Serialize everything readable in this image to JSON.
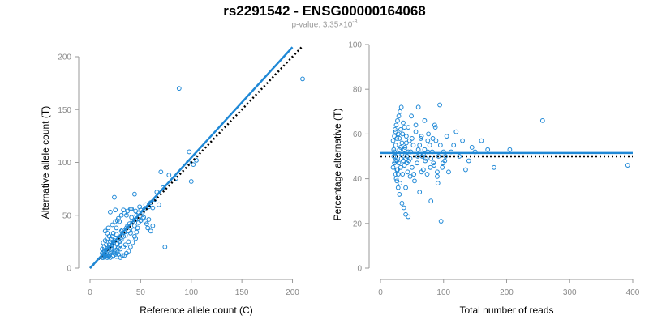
{
  "header": {
    "title": "rs2291542 - ENSG00000164068",
    "pvalue_prefix": "p-value: 3.35",
    "pvalue_times": "×10",
    "pvalue_exp": "-3"
  },
  "colors": {
    "points": "#1f88d6",
    "fit": "#1f88d6",
    "reference": "#000000",
    "axis": "#9a9a9a"
  },
  "chart_data": [
    {
      "type": "scatter",
      "title": "",
      "xlabel": "Reference allele count (C)",
      "ylabel": "Alternative allele count (T)",
      "xlim": [
        0,
        210
      ],
      "ylim": [
        0,
        200
      ],
      "xticks": [
        0,
        50,
        100,
        150,
        200
      ],
      "yticks": [
        0,
        50,
        100,
        150,
        200
      ],
      "fit_line": [
        [
          0,
          0
        ],
        [
          200,
          209
        ]
      ],
      "reference_line": [
        [
          0,
          0
        ],
        [
          210,
          210
        ]
      ],
      "points": [
        [
          12,
          10
        ],
        [
          13,
          12
        ],
        [
          14,
          11
        ],
        [
          15,
          13
        ],
        [
          13,
          15
        ],
        [
          16,
          14
        ],
        [
          17,
          12
        ],
        [
          12,
          18
        ],
        [
          14,
          20
        ],
        [
          16,
          22
        ],
        [
          18,
          19
        ],
        [
          13,
          24
        ],
        [
          15,
          26
        ],
        [
          17,
          28
        ],
        [
          19,
          22
        ],
        [
          20,
          25
        ],
        [
          12,
          14
        ],
        [
          14,
          16
        ],
        [
          16,
          17
        ],
        [
          18,
          15
        ],
        [
          15,
          11
        ],
        [
          13,
          10
        ],
        [
          17,
          10
        ],
        [
          19,
          12
        ],
        [
          20,
          14
        ],
        [
          22,
          18
        ],
        [
          21,
          21
        ],
        [
          23,
          24
        ],
        [
          24,
          26
        ],
        [
          25,
          28
        ],
        [
          22,
          30
        ],
        [
          26,
          32
        ],
        [
          28,
          27
        ],
        [
          27,
          23
        ],
        [
          29,
          25
        ],
        [
          30,
          29
        ],
        [
          24,
          20
        ],
        [
          26,
          17
        ],
        [
          28,
          19
        ],
        [
          30,
          22
        ],
        [
          31,
          27
        ],
        [
          33,
          30
        ],
        [
          34,
          34
        ],
        [
          32,
          36
        ],
        [
          35,
          31
        ],
        [
          36,
          38
        ],
        [
          38,
          35
        ],
        [
          40,
          33
        ],
        [
          37,
          40
        ],
        [
          39,
          42
        ],
        [
          42,
          44
        ],
        [
          44,
          40
        ],
        [
          41,
          48
        ],
        [
          45,
          46
        ],
        [
          46,
          50
        ],
        [
          48,
          52
        ],
        [
          50,
          55
        ],
        [
          52,
          53
        ],
        [
          54,
          56
        ],
        [
          55,
          60
        ],
        [
          47,
          38
        ],
        [
          50,
          45
        ],
        [
          43,
          36
        ],
        [
          45,
          28
        ],
        [
          38,
          25
        ],
        [
          35,
          22
        ],
        [
          33,
          20
        ],
        [
          30,
          18
        ],
        [
          27,
          15
        ],
        [
          25,
          13
        ],
        [
          23,
          12
        ],
        [
          22,
          11
        ],
        [
          20,
          10
        ],
        [
          18,
          11
        ],
        [
          16,
          12
        ],
        [
          14,
          13
        ],
        [
          19,
          20
        ],
        [
          21,
          16
        ],
        [
          23,
          33
        ],
        [
          26,
          38
        ],
        [
          29,
          44
        ],
        [
          31,
          35
        ],
        [
          27,
          45
        ],
        [
          25,
          55
        ],
        [
          20,
          53
        ],
        [
          24,
          67
        ],
        [
          33,
          55
        ],
        [
          36,
          50
        ],
        [
          44,
          70
        ],
        [
          40,
          56
        ],
        [
          58,
          58
        ],
        [
          56,
          42
        ],
        [
          60,
          62
        ],
        [
          62,
          57
        ],
        [
          64,
          65
        ],
        [
          66,
          72
        ],
        [
          68,
          60
        ],
        [
          70,
          91
        ],
        [
          72,
          76
        ],
        [
          74,
          20
        ],
        [
          78,
          88
        ],
        [
          85,
          85
        ],
        [
          88,
          170
        ],
        [
          97,
          100
        ],
        [
          98,
          110
        ],
        [
          100,
          82
        ],
        [
          102,
          98
        ],
        [
          105,
          102
        ],
        [
          210,
          179
        ],
        [
          58,
          46
        ],
        [
          60,
          35
        ],
        [
          62,
          40
        ],
        [
          57,
          38
        ],
        [
          55,
          44
        ],
        [
          53,
          48
        ],
        [
          48,
          43
        ],
        [
          46,
          34
        ],
        [
          44,
          30
        ],
        [
          42,
          24
        ],
        [
          40,
          20
        ],
        [
          38,
          16
        ],
        [
          36,
          14
        ],
        [
          34,
          12
        ],
        [
          32,
          12
        ],
        [
          30,
          10
        ],
        [
          28,
          13
        ],
        [
          26,
          11
        ],
        [
          24,
          16
        ],
        [
          22,
          22
        ],
        [
          21,
          27
        ],
        [
          19,
          30
        ],
        [
          17,
          33
        ],
        [
          15,
          35
        ],
        [
          18,
          38
        ],
        [
          22,
          41
        ],
        [
          25,
          44
        ],
        [
          28,
          47
        ],
        [
          31,
          50
        ],
        [
          34,
          52
        ],
        [
          37,
          54
        ],
        [
          41,
          56
        ],
        [
          45,
          54
        ],
        [
          49,
          58
        ],
        [
          52,
          47
        ]
      ]
    },
    {
      "type": "scatter",
      "title": "",
      "xlabel": "Total number of reads",
      "ylabel": "Percentage alternative (T)",
      "xlim": [
        0,
        400
      ],
      "ylim": [
        0,
        100
      ],
      "xticks": [
        0,
        100,
        200,
        300,
        400
      ],
      "yticks": [
        0,
        20,
        40,
        60,
        80,
        100
      ],
      "fit_line": [
        [
          0,
          51.5
        ],
        [
          400,
          51.5
        ]
      ],
      "reference_line": [
        [
          0,
          50
        ],
        [
          400,
          50
        ]
      ],
      "points": [
        [
          20,
          45
        ],
        [
          21,
          50
        ],
        [
          22,
          52
        ],
        [
          23,
          48
        ],
        [
          24,
          55
        ],
        [
          25,
          40
        ],
        [
          26,
          58
        ],
        [
          27,
          44
        ],
        [
          28,
          60
        ],
        [
          29,
          47
        ],
        [
          30,
          53
        ],
        [
          31,
          38
        ],
        [
          32,
          62
        ],
        [
          33,
          49
        ],
        [
          34,
          56
        ],
        [
          35,
          42
        ],
        [
          36,
          65
        ],
        [
          37,
          51
        ],
        [
          38,
          46
        ],
        [
          39,
          54
        ],
        [
          40,
          36
        ],
        [
          41,
          59
        ],
        [
          42,
          50
        ],
        [
          43,
          43
        ],
        [
          44,
          63
        ],
        [
          45,
          48
        ],
        [
          46,
          57
        ],
        [
          47,
          41
        ],
        [
          48,
          52
        ],
        [
          49,
          68
        ],
        [
          50,
          45
        ],
        [
          52,
          55
        ],
        [
          54,
          39
        ],
        [
          56,
          61
        ],
        [
          58,
          47
        ],
        [
          60,
          53
        ],
        [
          62,
          34
        ],
        [
          64,
          58
        ],
        [
          66,
          50
        ],
        [
          68,
          44
        ],
        [
          70,
          66
        ],
        [
          72,
          49
        ],
        [
          74,
          42
        ],
        [
          76,
          60
        ],
        [
          78,
          55
        ],
        [
          80,
          30
        ],
        [
          82,
          52
        ],
        [
          84,
          47
        ],
        [
          86,
          64
        ],
        [
          88,
          57
        ],
        [
          90,
          41
        ],
        [
          92,
          50
        ],
        [
          94,
          73
        ],
        [
          96,
          21
        ],
        [
          98,
          45
        ],
        [
          100,
          52
        ],
        [
          102,
          48
        ],
        [
          105,
          59
        ],
        [
          108,
          43
        ],
        [
          112,
          52
        ],
        [
          116,
          55
        ],
        [
          120,
          61
        ],
        [
          125,
          50
        ],
        [
          130,
          57
        ],
        [
          135,
          44
        ],
        [
          140,
          48
        ],
        [
          145,
          54
        ],
        [
          150,
          52
        ],
        [
          160,
          57
        ],
        [
          170,
          53
        ],
        [
          180,
          45
        ],
        [
          205,
          53
        ],
        [
          257,
          66
        ],
        [
          392,
          46
        ],
        [
          23,
          62
        ],
        [
          25,
          64
        ],
        [
          27,
          66
        ],
        [
          29,
          68
        ],
        [
          31,
          70
        ],
        [
          33,
          72
        ],
        [
          30,
          33
        ],
        [
          34,
          29
        ],
        [
          37,
          27
        ],
        [
          40,
          24
        ],
        [
          44,
          23
        ],
        [
          28,
          36
        ],
        [
          26,
          39
        ],
        [
          24,
          42
        ],
        [
          22,
          47
        ],
        [
          21,
          53
        ],
        [
          20,
          57
        ],
        [
          22,
          59
        ],
        [
          24,
          61
        ],
        [
          26,
          44
        ],
        [
          28,
          42
        ],
        [
          30,
          58
        ],
        [
          32,
          45
        ],
        [
          35,
          60
        ],
        [
          38,
          63
        ],
        [
          41,
          56
        ],
        [
          44,
          52
        ],
        [
          47,
          49
        ],
        [
          50,
          58
        ],
        [
          53,
          42
        ],
        [
          56,
          64
        ],
        [
          59,
          50
        ],
        [
          62,
          55
        ],
        [
          65,
          43
        ],
        [
          68,
          51
        ],
        [
          71,
          48
        ],
        [
          75,
          52
        ],
        [
          79,
          45
        ],
        [
          83,
          58
        ],
        [
          87,
          63
        ],
        [
          91,
          38
        ],
        [
          95,
          55
        ],
        [
          99,
          47
        ],
        [
          103,
          50
        ],
        [
          60,
          72
        ],
        [
          65,
          59
        ],
        [
          70,
          53
        ],
        [
          75,
          57
        ],
        [
          80,
          49
        ],
        [
          85,
          46
        ],
        [
          90,
          43
        ],
        [
          34,
          51
        ],
        [
          36,
          48
        ],
        [
          38,
          53
        ],
        [
          40,
          49
        ],
        [
          42,
          47
        ],
        [
          32,
          54
        ],
        [
          28,
          51
        ],
        [
          26,
          48
        ],
        [
          24,
          50
        ]
      ]
    }
  ]
}
